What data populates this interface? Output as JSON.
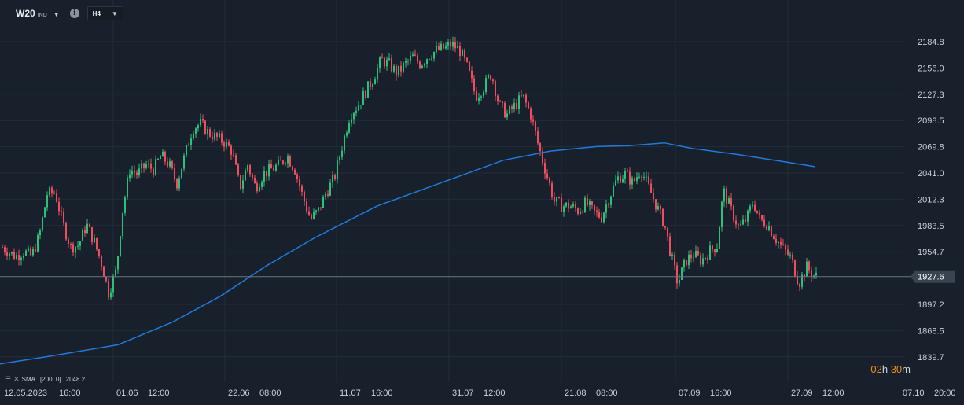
{
  "toolbar": {
    "symbol": "W20",
    "symbol_suffix": "IND",
    "timeframe": "H4"
  },
  "indicator": {
    "name": "SMA",
    "params": "[200, 0]",
    "value": "2048.2"
  },
  "countdown": {
    "hours": "02",
    "hours_unit": "h",
    "minutes": "30",
    "minutes_unit": "m"
  },
  "colors": {
    "background": "#18212b",
    "up": "#2fbf7a",
    "down": "#f04e5e",
    "sma": "#1f7ae0",
    "grid": "#222c37",
    "price_line": "#6b7682",
    "price_tag_bg": "#3a4450"
  },
  "chart_data": {
    "type": "candlestick",
    "title": "",
    "xlabel": "",
    "ylabel": "",
    "grid": true,
    "ylim": [
      1830,
      2200
    ],
    "y_ticks": [
      "2184.8",
      "2156.0",
      "2127.3",
      "2098.5",
      "2069.8",
      "2041.0",
      "2012.3",
      "1983.5",
      "1954.7",
      "1897.2",
      "1868.5",
      "1839.7"
    ],
    "x_ticks": [
      "12.05.2023",
      "16:00",
      "01.06",
      "12:00",
      "22.06",
      "08:00",
      "11.07",
      "16:00",
      "31.07",
      "12:00",
      "21.08",
      "08:00",
      "07.09",
      "16:00",
      "27.09",
      "12:00",
      "07.10",
      "20:00"
    ],
    "current_price": "1927.6",
    "price_path": [
      [
        0,
        1962
      ],
      [
        10,
        1955
      ],
      [
        20,
        1950
      ],
      [
        30,
        1955
      ],
      [
        40,
        1950
      ],
      [
        50,
        1972
      ],
      [
        60,
        2018
      ],
      [
        70,
        2020
      ],
      [
        80,
        1985
      ],
      [
        90,
        1960
      ],
      [
        100,
        1962
      ],
      [
        110,
        1985
      ],
      [
        120,
        1965
      ],
      [
        130,
        1940
      ],
      [
        138,
        1910
      ],
      [
        148,
        1935
      ],
      [
        155,
        1995
      ],
      [
        165,
        2045
      ],
      [
        175,
        2040
      ],
      [
        185,
        2050
      ],
      [
        195,
        2045
      ],
      [
        205,
        2060
      ],
      [
        215,
        2050
      ],
      [
        225,
        2030
      ],
      [
        235,
        2060
      ],
      [
        245,
        2090
      ],
      [
        255,
        2095
      ],
      [
        265,
        2085
      ],
      [
        275,
        2080
      ],
      [
        285,
        2075
      ],
      [
        295,
        2065
      ],
      [
        305,
        2025
      ],
      [
        315,
        2050
      ],
      [
        325,
        2025
      ],
      [
        335,
        2040
      ],
      [
        345,
        2045
      ],
      [
        355,
        2050
      ],
      [
        365,
        2060
      ],
      [
        375,
        2045
      ],
      [
        385,
        2015
      ],
      [
        395,
        1990
      ],
      [
        405,
        2000
      ],
      [
        415,
        2020
      ],
      [
        425,
        2035
      ],
      [
        435,
        2070
      ],
      [
        445,
        2105
      ],
      [
        455,
        2115
      ],
      [
        465,
        2130
      ],
      [
        475,
        2145
      ],
      [
        485,
        2165
      ],
      [
        495,
        2160
      ],
      [
        505,
        2150
      ],
      [
        515,
        2160
      ],
      [
        525,
        2168
      ],
      [
        535,
        2160
      ],
      [
        545,
        2170
      ],
      [
        555,
        2175
      ],
      [
        565,
        2178
      ],
      [
        575,
        2182
      ],
      [
        585,
        2175
      ],
      [
        595,
        2155
      ],
      [
        605,
        2125
      ],
      [
        615,
        2135
      ],
      [
        625,
        2150
      ],
      [
        635,
        2115
      ],
      [
        645,
        2105
      ],
      [
        655,
        2115
      ],
      [
        665,
        2125
      ],
      [
        675,
        2105
      ],
      [
        685,
        2070
      ],
      [
        695,
        2040
      ],
      [
        705,
        2010
      ],
      [
        715,
        2005
      ],
      [
        725,
        2005
      ],
      [
        735,
        2000
      ],
      [
        745,
        2008
      ],
      [
        755,
        1998
      ],
      [
        765,
        1993
      ],
      [
        775,
        2015
      ],
      [
        785,
        2035
      ],
      [
        795,
        2040
      ],
      [
        805,
        2030
      ],
      [
        815,
        2045
      ],
      [
        825,
        2025
      ],
      [
        835,
        2005
      ],
      [
        845,
        1985
      ],
      [
        855,
        1945
      ],
      [
        862,
        1920
      ],
      [
        872,
        1945
      ],
      [
        882,
        1952
      ],
      [
        892,
        1945
      ],
      [
        902,
        1955
      ],
      [
        912,
        1962
      ],
      [
        920,
        2022
      ],
      [
        930,
        2000
      ],
      [
        940,
        1980
      ],
      [
        950,
        1992
      ],
      [
        958,
        2010
      ],
      [
        966,
        1990
      ],
      [
        976,
        1985
      ],
      [
        986,
        1970
      ],
      [
        996,
        1958
      ],
      [
        1006,
        1948
      ],
      [
        1016,
        1920
      ],
      [
        1026,
        1938
      ],
      [
        1036,
        1928
      ]
    ],
    "series": [
      {
        "name": "SMA [200, 0]",
        "values": [
          [
            0,
            1832
          ],
          [
            60,
            1840
          ],
          [
            150,
            1853
          ],
          [
            220,
            1878
          ],
          [
            280,
            1906
          ],
          [
            340,
            1940
          ],
          [
            400,
            1970
          ],
          [
            480,
            2005
          ],
          [
            560,
            2030
          ],
          [
            640,
            2055
          ],
          [
            700,
            2065
          ],
          [
            760,
            2070
          ],
          [
            800,
            2071
          ],
          [
            845,
            2074
          ],
          [
            880,
            2068
          ],
          [
            940,
            2061
          ],
          [
            1000,
            2053
          ],
          [
            1036,
            2048
          ]
        ]
      }
    ]
  }
}
